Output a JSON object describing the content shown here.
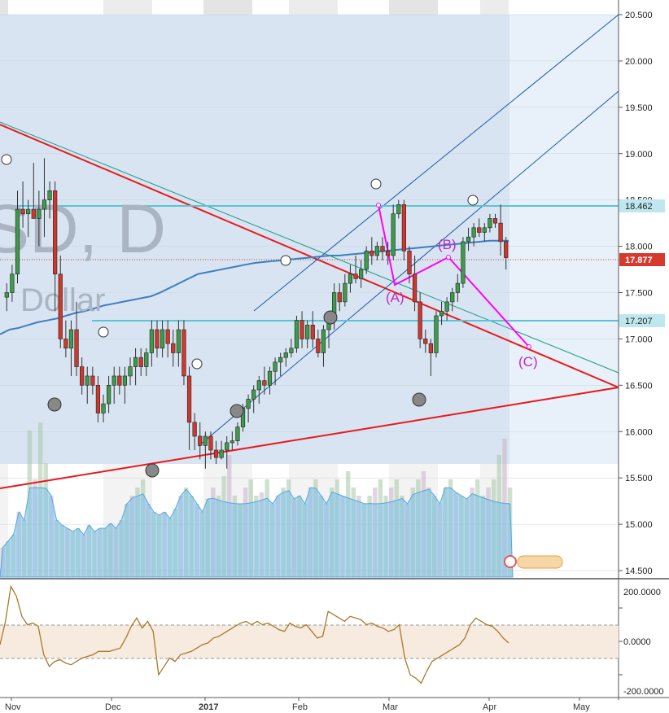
{
  "chart_data": {
    "type": "candlestick",
    "watermark_fragment": "SD, D",
    "watermark_subtitle": "Dollar",
    "price_axis": {
      "ticks": [
        14.5,
        15.0,
        15.5,
        16.0,
        16.5,
        17.0,
        17.5,
        18.0,
        18.5,
        19.0,
        19.5,
        20.0,
        20.5
      ],
      "tick_labels": [
        "14.500",
        "15.000",
        "15.500",
        "16.000",
        "16.500",
        "17.000",
        "17.500",
        "18.000",
        "18.500",
        "19.000",
        "19.500",
        "20.000",
        "20.500"
      ]
    },
    "time_axis": {
      "labels": [
        "Nov",
        "Dec",
        "2017",
        "Feb",
        "Mar",
        "Apr",
        "May"
      ],
      "bold": [
        false,
        false,
        true,
        false,
        false,
        false,
        false
      ]
    },
    "price_tags": [
      {
        "label": "18.462",
        "value": 18.462,
        "style": "horizontal-level"
      },
      {
        "label": "17.877",
        "value": 17.877,
        "style": "last-price"
      },
      {
        "label": "17.207",
        "value": 17.207,
        "style": "horizontal-level"
      }
    ],
    "wave_labels": [
      "(A)",
      "(B)",
      "(C)"
    ],
    "candles": [
      [
        17.45,
        17.6,
        17.3,
        17.5
      ],
      [
        17.5,
        17.8,
        17.4,
        17.7
      ],
      [
        17.7,
        18.6,
        17.6,
        18.4
      ],
      [
        18.4,
        18.7,
        18.2,
        18.35
      ],
      [
        18.35,
        18.5,
        18.1,
        18.4
      ],
      [
        18.4,
        18.9,
        18.3,
        18.3
      ],
      [
        18.3,
        18.6,
        18.0,
        18.4
      ],
      [
        18.4,
        18.95,
        18.1,
        18.5
      ],
      [
        18.5,
        18.7,
        18.3,
        18.6
      ],
      [
        18.6,
        18.7,
        17.3,
        17.7
      ],
      [
        17.7,
        17.9,
        16.9,
        17.0
      ],
      [
        17.0,
        17.2,
        16.8,
        16.9
      ],
      [
        16.9,
        17.2,
        16.6,
        17.1
      ],
      [
        17.1,
        17.4,
        16.6,
        16.7
      ],
      [
        16.7,
        16.8,
        16.4,
        16.5
      ],
      [
        16.5,
        16.7,
        16.3,
        16.6
      ],
      [
        16.6,
        16.7,
        16.4,
        16.5
      ],
      [
        16.5,
        16.6,
        16.1,
        16.2
      ],
      [
        16.2,
        16.4,
        16.1,
        16.3
      ],
      [
        16.3,
        16.6,
        16.2,
        16.5
      ],
      [
        16.5,
        16.7,
        16.3,
        16.6
      ],
      [
        16.6,
        16.7,
        16.4,
        16.5
      ],
      [
        16.5,
        16.7,
        16.3,
        16.6
      ],
      [
        16.6,
        16.8,
        16.5,
        16.7
      ],
      [
        16.7,
        16.9,
        16.5,
        16.8
      ],
      [
        16.8,
        16.9,
        16.6,
        16.7
      ],
      [
        16.7,
        16.9,
        16.6,
        16.85
      ],
      [
        16.85,
        17.2,
        16.7,
        17.1
      ],
      [
        17.1,
        17.2,
        16.8,
        16.9
      ],
      [
        16.9,
        17.2,
        16.8,
        17.1
      ],
      [
        17.1,
        17.2,
        16.8,
        16.95
      ],
      [
        16.95,
        17.1,
        16.7,
        16.85
      ],
      [
        16.85,
        17.2,
        16.7,
        17.1
      ],
      [
        17.1,
        17.2,
        16.5,
        16.6
      ],
      [
        16.6,
        16.7,
        15.8,
        16.1
      ],
      [
        16.1,
        16.2,
        15.8,
        15.95
      ],
      [
        15.95,
        16.1,
        15.7,
        15.85
      ],
      [
        15.85,
        16.0,
        15.6,
        15.95
      ],
      [
        15.95,
        16.0,
        15.7,
        15.8
      ],
      [
        15.8,
        15.9,
        15.65,
        15.72
      ],
      [
        15.72,
        15.9,
        15.7,
        15.8
      ],
      [
        15.8,
        15.95,
        15.6,
        15.88
      ],
      [
        15.88,
        16.0,
        15.8,
        15.9
      ],
      [
        15.9,
        16.1,
        15.85,
        16.05
      ],
      [
        16.05,
        16.3,
        16.0,
        16.25
      ],
      [
        16.25,
        16.4,
        16.1,
        16.35
      ],
      [
        16.35,
        16.5,
        16.2,
        16.45
      ],
      [
        16.45,
        16.6,
        16.3,
        16.55
      ],
      [
        16.55,
        16.7,
        16.4,
        16.5
      ],
      [
        16.5,
        16.7,
        16.4,
        16.65
      ],
      [
        16.65,
        16.8,
        16.5,
        16.75
      ],
      [
        16.75,
        16.85,
        16.6,
        16.8
      ],
      [
        16.8,
        16.9,
        16.7,
        16.85
      ],
      [
        16.85,
        17.0,
        16.8,
        16.9
      ],
      [
        16.9,
        17.25,
        16.85,
        17.2
      ],
      [
        17.2,
        17.3,
        16.9,
        17.0
      ],
      [
        17.0,
        17.2,
        16.9,
        17.15
      ],
      [
        17.15,
        17.3,
        16.9,
        17.0
      ],
      [
        17.0,
        17.1,
        16.8,
        16.85
      ],
      [
        16.85,
        17.15,
        16.7,
        17.1
      ],
      [
        17.1,
        17.3,
        16.9,
        17.2
      ],
      [
        17.2,
        17.6,
        17.1,
        17.5
      ],
      [
        17.5,
        17.6,
        17.3,
        17.4
      ],
      [
        17.4,
        17.7,
        17.35,
        17.6
      ],
      [
        17.6,
        17.8,
        17.5,
        17.7
      ],
      [
        17.7,
        17.9,
        17.6,
        17.65
      ],
      [
        17.65,
        17.85,
        17.55,
        17.75
      ],
      [
        17.75,
        18.0,
        17.7,
        17.95
      ],
      [
        17.95,
        18.1,
        17.8,
        17.9
      ],
      [
        17.9,
        18.05,
        17.85,
        18.0
      ],
      [
        18.0,
        18.1,
        17.85,
        17.95
      ],
      [
        17.95,
        18.05,
        17.8,
        17.9
      ],
      [
        17.9,
        18.45,
        17.85,
        18.35
      ],
      [
        18.35,
        18.5,
        18.3,
        18.45
      ],
      [
        18.45,
        18.5,
        17.85,
        17.95
      ],
      [
        17.95,
        18.0,
        17.6,
        17.7
      ],
      [
        17.7,
        17.9,
        17.3,
        17.4
      ],
      [
        17.4,
        17.5,
        16.9,
        17.0
      ],
      [
        17.0,
        17.1,
        16.85,
        16.95
      ],
      [
        16.95,
        17.0,
        16.6,
        16.85
      ],
      [
        16.85,
        17.3,
        16.8,
        17.25
      ],
      [
        17.25,
        17.4,
        17.15,
        17.3
      ],
      [
        17.3,
        17.45,
        17.2,
        17.4
      ],
      [
        17.4,
        17.55,
        17.3,
        17.5
      ],
      [
        17.5,
        17.7,
        17.4,
        17.6
      ],
      [
        17.6,
        18.1,
        17.55,
        18.05
      ],
      [
        18.05,
        18.2,
        17.95,
        18.1
      ],
      [
        18.1,
        18.25,
        18.0,
        18.2
      ],
      [
        18.2,
        18.3,
        18.1,
        18.15
      ],
      [
        18.15,
        18.25,
        18.05,
        18.2
      ],
      [
        18.2,
        18.35,
        18.15,
        18.3
      ],
      [
        18.3,
        18.35,
        18.2,
        18.25
      ],
      [
        18.25,
        18.45,
        17.9,
        18.05
      ],
      [
        18.05,
        18.1,
        17.75,
        17.877
      ]
    ],
    "sma_line": [
      17.05,
      17.1,
      17.12,
      17.15,
      17.18,
      17.2,
      17.22,
      17.25,
      17.28,
      17.3,
      17.33,
      17.36,
      17.38,
      17.4,
      17.42,
      17.44,
      17.46,
      17.5,
      17.55,
      17.6,
      17.65,
      17.7,
      17.72,
      17.74,
      17.76,
      17.78,
      17.8,
      17.82,
      17.83,
      17.84,
      17.85,
      17.86,
      17.87,
      17.88,
      17.89,
      17.9,
      17.9,
      17.91,
      17.92,
      17.93,
      17.94,
      17.95,
      17.96,
      17.97,
      17.98,
      17.99,
      18.0,
      18.01,
      18.02,
      18.03,
      18.04,
      18.05,
      18.06,
      18.06,
      18.06
    ],
    "volume": [
      0.18,
      0.22,
      0.26,
      0.4,
      0.35,
      0.9,
      0.6,
      0.95,
      0.7,
      0.5,
      0.35,
      0.32,
      0.3,
      0.28,
      0.3,
      0.26,
      0.32,
      0.28,
      0.3,
      0.3,
      0.33,
      0.3,
      0.35,
      0.45,
      0.5,
      0.55,
      0.6,
      0.45,
      0.4,
      0.38,
      0.4,
      0.36,
      0.42,
      0.5,
      0.55,
      0.5,
      0.45,
      0.4,
      0.48,
      0.55,
      0.5,
      0.62,
      0.75,
      0.5,
      0.45,
      0.55,
      0.6,
      0.5,
      0.52,
      0.6,
      0.45,
      0.5,
      0.55,
      0.6,
      0.48,
      0.5,
      0.45,
      0.55,
      0.6,
      0.5,
      0.45,
      0.55,
      0.6,
      0.5,
      0.65,
      0.55,
      0.5,
      0.45,
      0.5,
      0.55,
      0.6,
      0.5,
      0.55,
      0.6,
      0.5,
      0.45,
      0.55,
      0.6,
      0.65,
      0.55,
      0.5,
      0.45,
      0.55,
      0.6,
      0.52,
      0.5,
      0.48,
      0.55,
      0.6,
      0.5,
      0.55,
      0.6,
      0.75,
      0.85,
      0.55
    ],
    "oscillator": {
      "ticks": [
        200,
        0,
        -200
      ],
      "tick_labels": [
        "200.0000",
        "0.0000",
        "-200.0000"
      ],
      "band": [
        100,
        -100
      ],
      "values": [
        -20,
        120,
        330,
        270,
        150,
        100,
        110,
        90,
        -80,
        -150,
        -120,
        -110,
        -130,
        -140,
        -120,
        -100,
        -90,
        -80,
        -60,
        -60,
        -60,
        -50,
        -40,
        20,
        90,
        140,
        80,
        120,
        60,
        -200,
        -150,
        -100,
        -120,
        -80,
        -70,
        -60,
        -40,
        -20,
        -10,
        20,
        30,
        50,
        70,
        90,
        110,
        120,
        100,
        120,
        100,
        110,
        90,
        70,
        60,
        110,
        90,
        80,
        100,
        60,
        20,
        30,
        180,
        160,
        140,
        120,
        150,
        140,
        130,
        100,
        110,
        90,
        80,
        60,
        70,
        100,
        -100,
        -200,
        -220,
        -250,
        -180,
        -120,
        -100,
        -80,
        -60,
        -40,
        -20,
        20,
        100,
        140,
        120,
        100,
        90,
        60,
        20,
        -10
      ]
    }
  }
}
